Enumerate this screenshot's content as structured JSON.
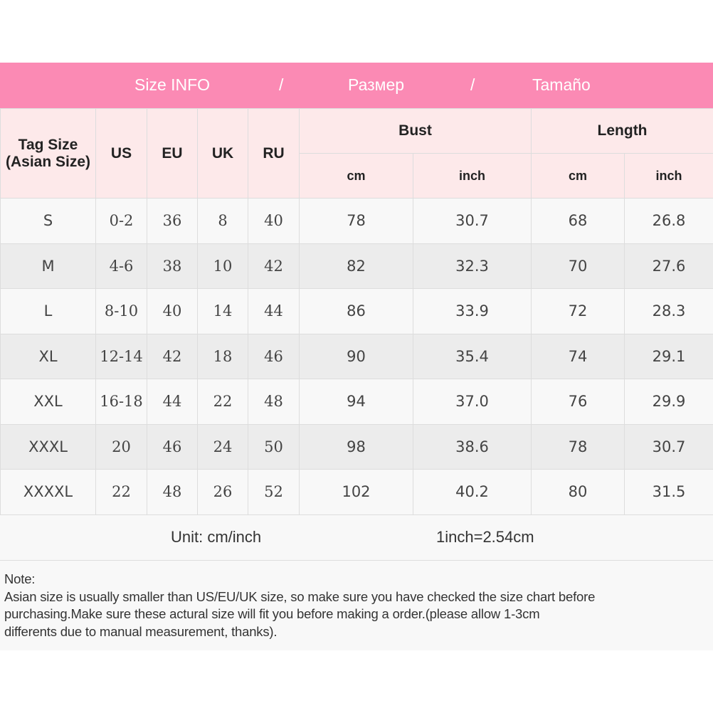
{
  "banner": {
    "title_en": "Size INFO",
    "sep1": "/",
    "title_ru": "Размер",
    "sep2": "/",
    "title_es": "Tamaño"
  },
  "header": {
    "tag_size": "Tag Size",
    "tag_size_sub": "(Asian Size)",
    "us": "US",
    "eu": "EU",
    "uk": "UK",
    "ru": "RU",
    "bust": "Bust",
    "length": "Length",
    "cm": "cm",
    "inch": "inch"
  },
  "rows": [
    {
      "tag": "S",
      "us": "0-2",
      "eu": "36",
      "uk": "8",
      "ru": "40",
      "bust_cm": "78",
      "bust_in": "30.7",
      "len_cm": "68",
      "len_in": "26.8"
    },
    {
      "tag": "M",
      "us": "4-6",
      "eu": "38",
      "uk": "10",
      "ru": "42",
      "bust_cm": "82",
      "bust_in": "32.3",
      "len_cm": "70",
      "len_in": "27.6"
    },
    {
      "tag": "L",
      "us": "8-10",
      "eu": "40",
      "uk": "14",
      "ru": "44",
      "bust_cm": "86",
      "bust_in": "33.9",
      "len_cm": "72",
      "len_in": "28.3"
    },
    {
      "tag": "XL",
      "us": "12-14",
      "eu": "42",
      "uk": "18",
      "ru": "46",
      "bust_cm": "90",
      "bust_in": "35.4",
      "len_cm": "74",
      "len_in": "29.1"
    },
    {
      "tag": "XXL",
      "us": "16-18",
      "eu": "44",
      "uk": "22",
      "ru": "48",
      "bust_cm": "94",
      "bust_in": "37.0",
      "len_cm": "76",
      "len_in": "29.9"
    },
    {
      "tag": "XXXL",
      "us": "20",
      "eu": "46",
      "uk": "24",
      "ru": "50",
      "bust_cm": "98",
      "bust_in": "38.6",
      "len_cm": "78",
      "len_in": "30.7"
    },
    {
      "tag": "XXXXL",
      "us": "22",
      "eu": "48",
      "uk": "26",
      "ru": "52",
      "bust_cm": "102",
      "bust_in": "40.2",
      "len_cm": "80",
      "len_in": "31.5"
    }
  ],
  "unit": {
    "label": "Unit: cm/inch",
    "conversion": "1inch=2.54cm"
  },
  "note": {
    "title": "Note:",
    "line1": "Asian size is usually smaller than US/EU/UK size, so make sure you have checked the size chart before",
    "line2": "purchasing.Make sure these actural size will fit you before making a order.(please allow 1-3cm",
    "line3": "differents due to manual measurement, thanks)."
  },
  "colors": {
    "banner": "#fb8ab4",
    "header_bg": "#fde9ea"
  }
}
